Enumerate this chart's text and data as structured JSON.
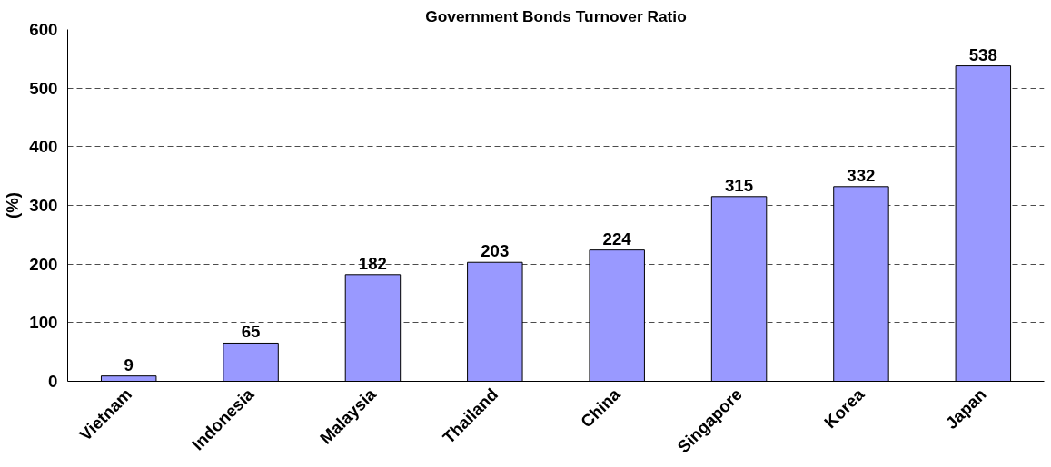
{
  "chart_data": {
    "type": "bar",
    "title": "Government Bonds Turnover Ratio",
    "ylabel": "(%)",
    "categories": [
      "Vietnam",
      "Indonesia",
      "Malaysia",
      "Thailand",
      "China",
      "Singapore",
      "Korea",
      "Japan"
    ],
    "values": [
      9,
      65,
      182,
      203,
      224,
      315,
      332,
      538
    ],
    "color": "#9999ff",
    "ylim": [
      0,
      600
    ],
    "yticks": [
      0,
      100,
      200,
      300,
      400,
      500,
      600
    ],
    "grid": "y",
    "data_labels": true
  }
}
